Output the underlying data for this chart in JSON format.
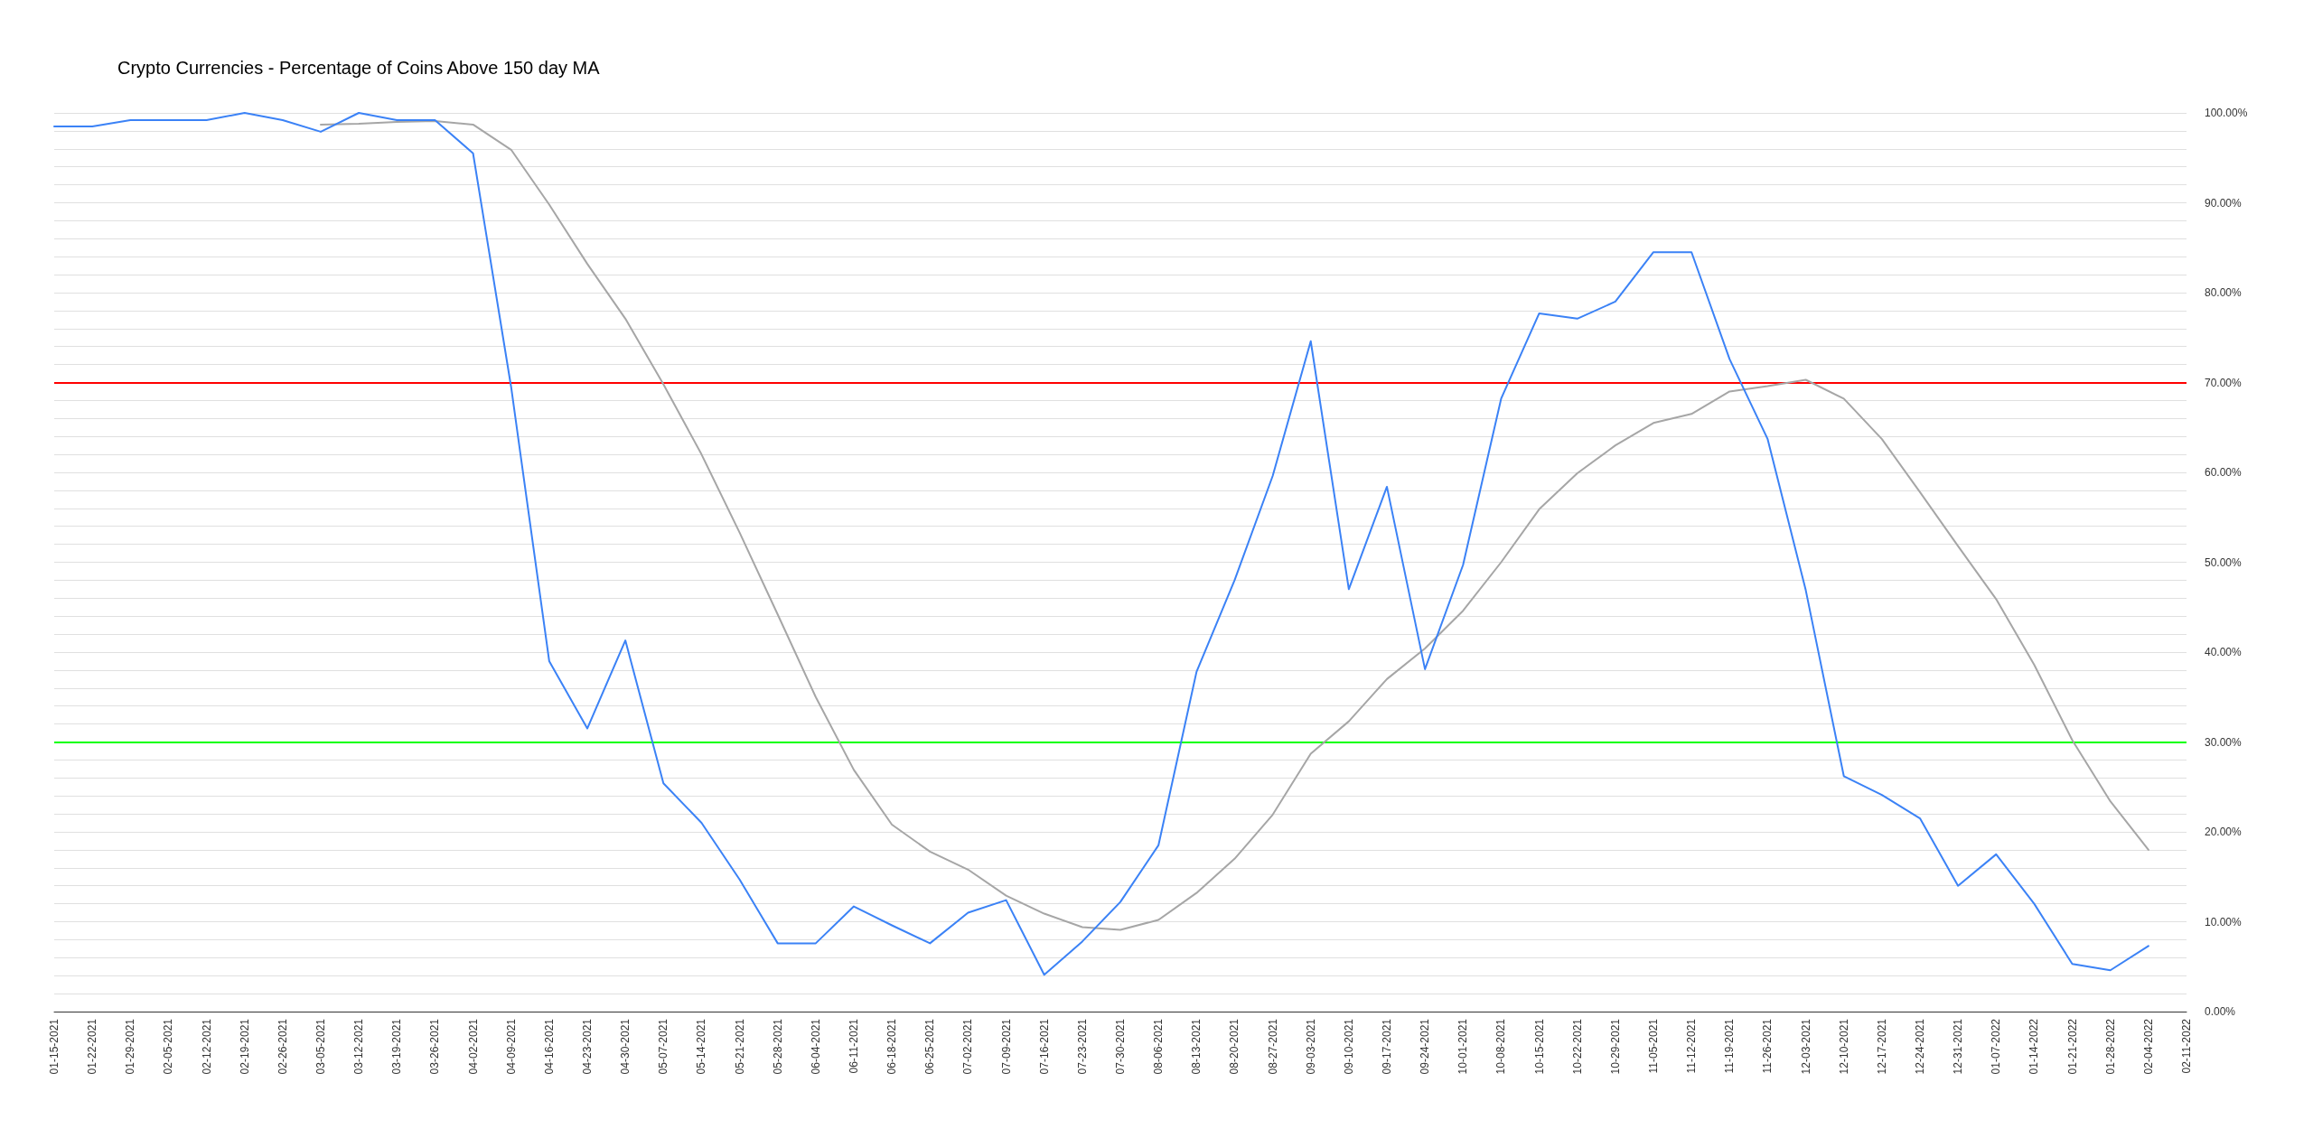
{
  "chart_data": {
    "type": "line",
    "title": "Crypto Currencies - Percentage of Coins Above 150 day MA",
    "categories": [
      "01-15-2021",
      "01-22-2021",
      "01-29-2021",
      "02-05-2021",
      "02-12-2021",
      "02-19-2021",
      "02-26-2021",
      "03-05-2021",
      "03-12-2021",
      "03-19-2021",
      "03-26-2021",
      "04-02-2021",
      "04-09-2021",
      "04-16-2021",
      "04-23-2021",
      "04-30-2021",
      "05-07-2021",
      "05-14-2021",
      "05-21-2021",
      "05-28-2021",
      "06-04-2021",
      "06-11-2021",
      "06-18-2021",
      "06-25-2021",
      "07-02-2021",
      "07-09-2021",
      "07-16-2021",
      "07-23-2021",
      "07-30-2021",
      "08-06-2021",
      "08-13-2021",
      "08-20-2021",
      "08-27-2021",
      "09-03-2021",
      "09-10-2021",
      "09-17-2021",
      "09-24-2021",
      "10-01-2021",
      "10-08-2021",
      "10-15-2021",
      "10-22-2021",
      "10-29-2021",
      "11-05-2021",
      "11-12-2021",
      "11-19-2021",
      "11-26-2021",
      "12-03-2021",
      "12-10-2021",
      "12-17-2021",
      "12-24-2021",
      "12-31-2021",
      "01-07-2022",
      "01-14-2022",
      "01-21-2022",
      "01-28-2022",
      "02-04-2022",
      "02-11-2022"
    ],
    "series": [
      {
        "color": "#3b82f6",
        "values": [
          98.5,
          98.5,
          99.2,
          99.2,
          99.2,
          100,
          99.2,
          97.9,
          100,
          99.2,
          99.2,
          95.5,
          69.5,
          39,
          31.5,
          41.3,
          25.4,
          21,
          14.7,
          7.6,
          7.6,
          11.7,
          9.6,
          7.6,
          11,
          12.4,
          4.1,
          7.8,
          12.2,
          18.5,
          37.8,
          48,
          59.6,
          74.6,
          47,
          58.4,
          38.1,
          49.7,
          68.2,
          77.7,
          77.1,
          79,
          84.5,
          84.5,
          72.6,
          63.7,
          46.9,
          26.2,
          24.1,
          21.5,
          14,
          17.5,
          12,
          5.3,
          4.6,
          7.3,
          null
        ]
      },
      {
        "color": "#a6a6a6",
        "values": [
          null,
          null,
          null,
          null,
          null,
          null,
          null,
          98.7,
          98.8,
          99,
          99.1,
          98.7,
          95.9,
          89.8,
          83.2,
          77.1,
          69.8,
          62,
          53.3,
          44.2,
          35,
          26.9,
          20.8,
          17.8,
          15.8,
          12.9,
          10.9,
          9.4,
          9.1,
          10.2,
          13.2,
          17,
          21.9,
          28.7,
          32.3,
          37,
          40.4,
          44.6,
          50,
          55.9,
          59.9,
          63,
          65.5,
          66.5,
          69,
          69.6,
          70.3,
          68.2,
          63.7,
          57.8,
          51.8,
          45.9,
          38.6,
          30.2,
          23.4,
          18,
          null
        ]
      }
    ],
    "ylim": [
      0,
      100
    ],
    "yticks": [
      {
        "value": 0,
        "label": "0.00%"
      },
      {
        "value": 2,
        "label": null
      },
      {
        "value": 4,
        "label": null
      },
      {
        "value": 6,
        "label": null
      },
      {
        "value": 8,
        "label": null
      },
      {
        "value": 10,
        "label": "10.00%"
      },
      {
        "value": 12,
        "label": null
      },
      {
        "value": 14,
        "label": null
      },
      {
        "value": 16,
        "label": null
      },
      {
        "value": 18,
        "label": null
      },
      {
        "value": 20,
        "label": "20.00%"
      },
      {
        "value": 22,
        "label": null
      },
      {
        "value": 24,
        "label": null
      },
      {
        "value": 26,
        "label": null
      },
      {
        "value": 28,
        "label": null
      },
      {
        "value": 30,
        "label": "30.00%"
      },
      {
        "value": 32,
        "label": null
      },
      {
        "value": 34,
        "label": null
      },
      {
        "value": 36,
        "label": null
      },
      {
        "value": 38,
        "label": null
      },
      {
        "value": 40,
        "label": "40.00%"
      },
      {
        "value": 42,
        "label": null
      },
      {
        "value": 44,
        "label": null
      },
      {
        "value": 46,
        "label": null
      },
      {
        "value": 48,
        "label": null
      },
      {
        "value": 50,
        "label": "50.00%"
      },
      {
        "value": 52,
        "label": null
      },
      {
        "value": 54,
        "label": null
      },
      {
        "value": 56,
        "label": null
      },
      {
        "value": 58,
        "label": null
      },
      {
        "value": 60,
        "label": "60.00%"
      },
      {
        "value": 62,
        "label": null
      },
      {
        "value": 64,
        "label": null
      },
      {
        "value": 66,
        "label": null
      },
      {
        "value": 68,
        "label": null
      },
      {
        "value": 70,
        "label": "70.00%"
      },
      {
        "value": 72,
        "label": null
      },
      {
        "value": 74,
        "label": null
      },
      {
        "value": 76,
        "label": null
      },
      {
        "value": 78,
        "label": null
      },
      {
        "value": 80,
        "label": "80.00%"
      },
      {
        "value": 82,
        "label": null
      },
      {
        "value": 84,
        "label": null
      },
      {
        "value": 86,
        "label": null
      },
      {
        "value": 88,
        "label": null
      },
      {
        "value": 90,
        "label": "90.00%"
      },
      {
        "value": 92,
        "label": null
      },
      {
        "value": 94,
        "label": null
      },
      {
        "value": 96,
        "label": null
      },
      {
        "value": 98,
        "label": null
      },
      {
        "value": 100,
        "label": "100.00%"
      }
    ],
    "ref_lines": [
      {
        "axis": "y",
        "value": 70,
        "color": "#ff0000"
      },
      {
        "axis": "y",
        "value": 30,
        "color": "#00ff00"
      }
    ],
    "grid": "y",
    "marker": "none",
    "line_style": "solid"
  }
}
